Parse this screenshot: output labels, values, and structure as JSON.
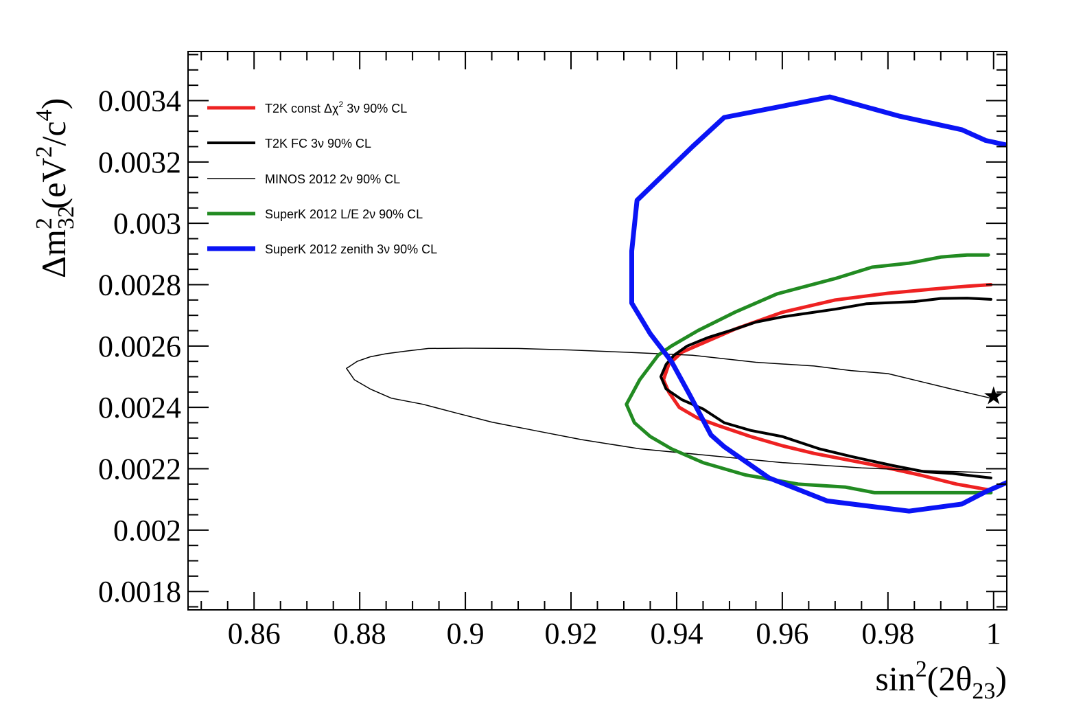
{
  "chart_data": {
    "type": "line",
    "xlim": [
      0.8475,
      1.0025
    ],
    "ylim": [
      0.00174,
      0.00356
    ],
    "x_ticks": [
      "0.86",
      "0.88",
      "0.9",
      "0.92",
      "0.94",
      "0.96",
      "0.98",
      "1"
    ],
    "y_ticks": [
      "0.0018",
      "0.002",
      "0.0022",
      "0.0024",
      "0.0026",
      "0.0028",
      "0.003",
      "0.0032",
      "0.0034"
    ],
    "x_tick_values": [
      0.86,
      0.88,
      0.9,
      0.92,
      0.94,
      0.96,
      0.98,
      1.0
    ],
    "y_tick_values": [
      0.0018,
      0.002,
      0.0022,
      0.0024,
      0.0026,
      0.0028,
      0.003,
      0.0032,
      0.0034
    ],
    "grid": false,
    "legend_position": "top-left",
    "xlabel": {
      "base": "sin",
      "sup": "2",
      "mid": "(2θ",
      "sub": "23",
      "end": ")"
    },
    "ylabel": {
      "delta": "Δm",
      "sub": "32",
      "sup": "2",
      "rest1": "  (eV",
      "sup2": "2",
      "rest2": "/c",
      "sup3": "4",
      "rest3": ")"
    },
    "series": [
      {
        "name": "T2K const Δχ² 3ν 90% CL",
        "label_main": "T2K const Δχ",
        "label_sup": "2",
        "label_tail": " 3ν 90% CL",
        "color": "#ee2222",
        "width": 5,
        "points": [
          [
            0.9995,
            0.0028
          ],
          [
            0.995,
            0.002795
          ],
          [
            0.988,
            0.002785
          ],
          [
            0.98,
            0.002772
          ],
          [
            0.97,
            0.00275
          ],
          [
            0.96,
            0.00271
          ],
          [
            0.951,
            0.002655
          ],
          [
            0.945,
            0.00261
          ],
          [
            0.941,
            0.00258
          ],
          [
            0.9385,
            0.00254
          ],
          [
            0.9375,
            0.00249
          ],
          [
            0.9385,
            0.00245
          ],
          [
            0.9405,
            0.0024
          ],
          [
            0.944,
            0.002365
          ],
          [
            0.948,
            0.00234
          ],
          [
            0.954,
            0.002305
          ],
          [
            0.96,
            0.002275
          ],
          [
            0.966,
            0.00225
          ],
          [
            0.972,
            0.00223
          ],
          [
            0.978,
            0.00221
          ],
          [
            0.986,
            0.00218
          ],
          [
            0.993,
            0.00215
          ],
          [
            0.9995,
            0.00213
          ]
        ]
      },
      {
        "name": "T2K FC 3ν 90% CL",
        "label_main": "T2K FC 3ν 90% CL",
        "label_sup": "",
        "label_tail": "",
        "color": "#000000",
        "width": 4,
        "points": [
          [
            0.9995,
            0.002752
          ],
          [
            0.995,
            0.002756
          ],
          [
            0.99,
            0.002755
          ],
          [
            0.985,
            0.002745
          ],
          [
            0.976,
            0.002738
          ],
          [
            0.97,
            0.00272
          ],
          [
            0.964,
            0.002705
          ],
          [
            0.96,
            0.002695
          ],
          [
            0.955,
            0.002678
          ],
          [
            0.951,
            0.002655
          ],
          [
            0.946,
            0.002628
          ],
          [
            0.942,
            0.0026
          ],
          [
            0.9395,
            0.00257
          ],
          [
            0.938,
            0.00254
          ],
          [
            0.937,
            0.0025
          ],
          [
            0.938,
            0.00246
          ],
          [
            0.941,
            0.002425
          ],
          [
            0.945,
            0.002395
          ],
          [
            0.949,
            0.00235
          ],
          [
            0.954,
            0.002325
          ],
          [
            0.96,
            0.002305
          ],
          [
            0.967,
            0.002265
          ],
          [
            0.973,
            0.00224
          ],
          [
            0.981,
            0.00221
          ],
          [
            0.987,
            0.00219
          ],
          [
            0.992,
            0.002185
          ],
          [
            0.9995,
            0.00217
          ]
        ]
      },
      {
        "name": "MINOS 2012 2ν 90% CL",
        "label_main": "MINOS 2012 2ν 90% CL",
        "label_sup": "",
        "label_tail": "",
        "color": "#000000",
        "width": 1.5,
        "points": [
          [
            0.9995,
            0.00243
          ],
          [
            0.992,
            0.00246
          ],
          [
            0.986,
            0.002485
          ],
          [
            0.98,
            0.00251
          ],
          [
            0.973,
            0.00252
          ],
          [
            0.966,
            0.002535
          ],
          [
            0.955,
            0.002547
          ],
          [
            0.943,
            0.00257
          ],
          [
            0.93,
            0.00258
          ],
          [
            0.92,
            0.002587
          ],
          [
            0.91,
            0.002592
          ],
          [
            0.9,
            0.002593
          ],
          [
            0.893,
            0.002592
          ],
          [
            0.889,
            0.002584
          ],
          [
            0.885,
            0.002575
          ],
          [
            0.882,
            0.002565
          ],
          [
            0.8795,
            0.00255
          ],
          [
            0.8775,
            0.002527
          ],
          [
            0.879,
            0.00249
          ],
          [
            0.882,
            0.00246
          ],
          [
            0.886,
            0.00243
          ],
          [
            0.892,
            0.00241
          ],
          [
            0.898,
            0.002383
          ],
          [
            0.905,
            0.002352
          ],
          [
            0.913,
            0.002325
          ],
          [
            0.922,
            0.002295
          ],
          [
            0.933,
            0.002265
          ],
          [
            0.945,
            0.002245
          ],
          [
            0.96,
            0.00222
          ],
          [
            0.975,
            0.002203
          ],
          [
            0.99,
            0.002192
          ],
          [
            0.9995,
            0.002187
          ]
        ]
      },
      {
        "name": "SuperK 2012 L/E 2ν 90% CL",
        "label_main": "SuperK 2012 L/E 2ν 90% CL",
        "label_sup": "",
        "label_tail": "",
        "color": "#228B22",
        "width": 5,
        "points": [
          [
            0.999,
            0.002897
          ],
          [
            0.995,
            0.002897
          ],
          [
            0.99,
            0.00289
          ],
          [
            0.984,
            0.00287
          ],
          [
            0.977,
            0.002857
          ],
          [
            0.97,
            0.00282
          ],
          [
            0.959,
            0.00277
          ],
          [
            0.951,
            0.00271
          ],
          [
            0.944,
            0.00265
          ],
          [
            0.939,
            0.0026
          ],
          [
            0.9365,
            0.00257
          ],
          [
            0.933,
            0.00249
          ],
          [
            0.9305,
            0.00241
          ],
          [
            0.932,
            0.00235
          ],
          [
            0.935,
            0.002305
          ],
          [
            0.939,
            0.002265
          ],
          [
            0.945,
            0.00222
          ],
          [
            0.953,
            0.00218
          ],
          [
            0.963,
            0.00215
          ],
          [
            0.972,
            0.00214
          ],
          [
            0.9775,
            0.002122
          ],
          [
            0.99,
            0.002122
          ],
          [
            0.9995,
            0.002122
          ]
        ]
      },
      {
        "name": "SuperK 2012 zenith 3ν 90% CL",
        "label_main": "SuperK 2012 zenith 3ν 90% CL",
        "label_sup": "",
        "label_tail": "",
        "color": "#0a14f5",
        "width": 7,
        "points": [
          [
            1.0025,
            0.003255
          ],
          [
            0.9985,
            0.00327
          ],
          [
            0.994,
            0.003305
          ],
          [
            0.982,
            0.00335
          ],
          [
            0.969,
            0.003412
          ],
          [
            0.949,
            0.003345
          ],
          [
            0.943,
            0.00325
          ],
          [
            0.9325,
            0.003075
          ],
          [
            0.9315,
            0.00291
          ],
          [
            0.9315,
            0.00274
          ],
          [
            0.935,
            0.00264
          ],
          [
            0.939,
            0.00255
          ],
          [
            0.9425,
            0.00244
          ],
          [
            0.9465,
            0.00231
          ],
          [
            0.949,
            0.002272
          ],
          [
            0.9575,
            0.00217
          ],
          [
            0.9685,
            0.002095
          ],
          [
            0.984,
            0.002062
          ],
          [
            0.994,
            0.002085
          ],
          [
            0.9985,
            0.002125
          ],
          [
            1.0025,
            0.002155
          ]
        ]
      }
    ],
    "marker": {
      "symbol": "★",
      "x": 1.0,
      "y": 0.00244
    }
  }
}
